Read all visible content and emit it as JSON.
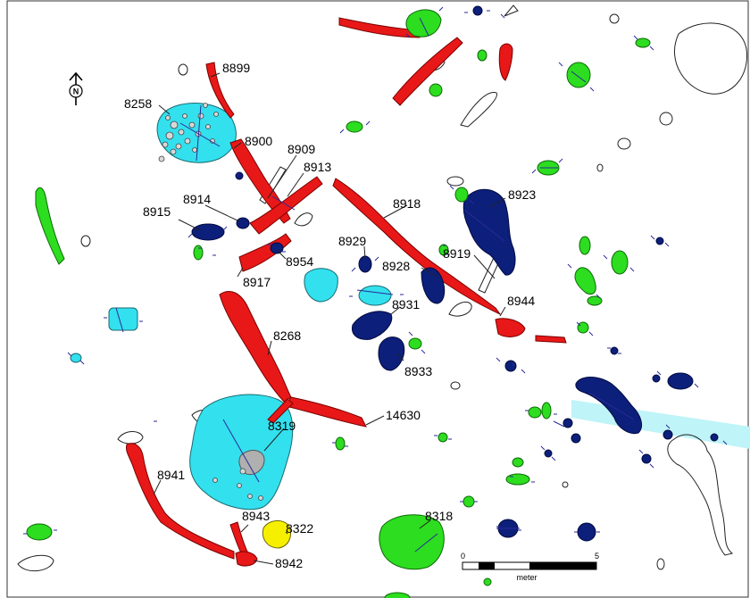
{
  "map": {
    "north_label": "N",
    "scale": {
      "start": "0",
      "end": "5",
      "unit": "meter"
    },
    "features": [
      {
        "id": "f8899",
        "label": "8899",
        "color": "red"
      },
      {
        "id": "f8258",
        "label": "8258",
        "color": "cyan"
      },
      {
        "id": "f8900",
        "label": "8900",
        "color": "red"
      },
      {
        "id": "f8909",
        "label": "8909",
        "color": "red"
      },
      {
        "id": "f8913",
        "label": "8913",
        "color": "red"
      },
      {
        "id": "f8914",
        "label": "8914",
        "color": "blue"
      },
      {
        "id": "f8915",
        "label": "8915",
        "color": "blue"
      },
      {
        "id": "f8918",
        "label": "8918",
        "color": "red"
      },
      {
        "id": "f8923",
        "label": "8923",
        "color": "blue"
      },
      {
        "id": "f8929",
        "label": "8929",
        "color": "blue"
      },
      {
        "id": "f8954",
        "label": "8954",
        "color": "blue"
      },
      {
        "id": "f8928",
        "label": "8928",
        "color": "blue"
      },
      {
        "id": "f8919",
        "label": "8919",
        "color": "red"
      },
      {
        "id": "f8917",
        "label": "8917",
        "color": "red"
      },
      {
        "id": "f8944",
        "label": "8944",
        "color": "red"
      },
      {
        "id": "f8931",
        "label": "8931",
        "color": "blue"
      },
      {
        "id": "f8268",
        "label": "8268",
        "color": "red"
      },
      {
        "id": "f8933",
        "label": "8933",
        "color": "blue"
      },
      {
        "id": "f14630",
        "label": "14630",
        "color": "red"
      },
      {
        "id": "f8319",
        "label": "8319",
        "color": "cyan"
      },
      {
        "id": "f8941",
        "label": "8941",
        "color": "red"
      },
      {
        "id": "f8943",
        "label": "8943",
        "color": "red"
      },
      {
        "id": "f8322",
        "label": "8322",
        "color": "yellow"
      },
      {
        "id": "f8318",
        "label": "8318",
        "color": "green"
      },
      {
        "id": "f8942",
        "label": "8942",
        "color": "red"
      }
    ],
    "colors": {
      "red": "#e81818",
      "blue": "#0c1f7a",
      "cyan": "#33e0ee",
      "green": "#2ddd20",
      "yellow": "#f6f000",
      "grey": "#b0b0b0"
    }
  }
}
